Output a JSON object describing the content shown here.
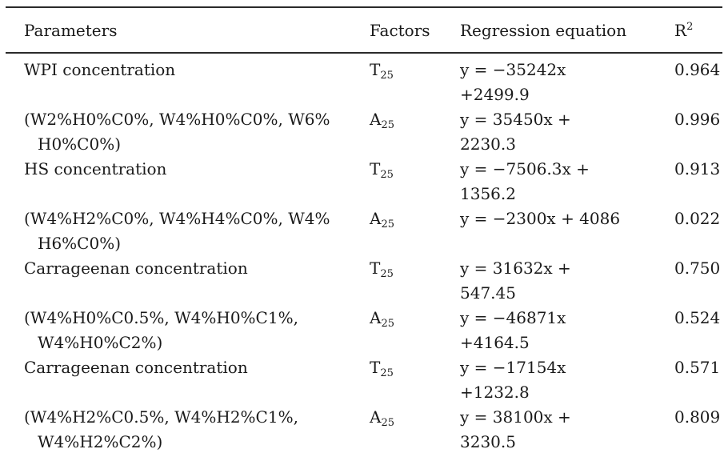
{
  "header": {
    "parameters": "Parameters",
    "factors": "Factors",
    "regression": "Regression equation",
    "r_base": "R",
    "r_sup": "2"
  },
  "rows": [
    {
      "param_line1": "WPI concentration",
      "param_line2": "",
      "factor_base": "T",
      "factor_sub": "25",
      "eq_line1": "y = −35242x",
      "eq_line2": "+2499.9",
      "r2": "0.964"
    },
    {
      "param_line1": "(W2%H0%C0%, W4%H0%C0%, W6%",
      "param_line2": "H0%C0%)",
      "factor_base": "A",
      "factor_sub": "25",
      "eq_line1": "y = 35450x +",
      "eq_line2": "2230.3",
      "r2": "0.996"
    },
    {
      "param_line1": "HS concentration",
      "param_line2": "",
      "factor_base": "T",
      "factor_sub": "25",
      "eq_line1": "y = −7506.3x +",
      "eq_line2": "1356.2",
      "r2": "0.913"
    },
    {
      "param_line1": "(W4%H2%C0%, W4%H4%C0%, W4%",
      "param_line2": "H6%C0%)",
      "factor_base": "A",
      "factor_sub": "25",
      "eq_line1": "y = −2300x + 4086",
      "eq_line2": "",
      "r2": "0.022"
    },
    {
      "param_line1": "Carrageenan concentration",
      "param_line2": "",
      "factor_base": "T",
      "factor_sub": "25",
      "eq_line1": "y = 31632x +",
      "eq_line2": "547.45",
      "r2": "0.750"
    },
    {
      "param_line1": "(W4%H0%C0.5%, W4%H0%C1%,",
      "param_line2": "W4%H0%C2%)",
      "factor_base": "A",
      "factor_sub": "25",
      "eq_line1": "y = −46871x",
      "eq_line2": "+4164.5",
      "r2": "0.524"
    },
    {
      "param_line1": "Carrageenan concentration",
      "param_line2": "",
      "factor_base": "T",
      "factor_sub": "25",
      "eq_line1": "y = −17154x",
      "eq_line2": "+1232.8",
      "r2": "0.571"
    },
    {
      "param_line1": "(W4%H2%C0.5%, W4%H2%C1%,",
      "param_line2": "W4%H2%C2%)",
      "factor_base": "A",
      "factor_sub": "25",
      "eq_line1": "y = 38100x +",
      "eq_line2": "3230.5",
      "r2": "0.809"
    }
  ]
}
